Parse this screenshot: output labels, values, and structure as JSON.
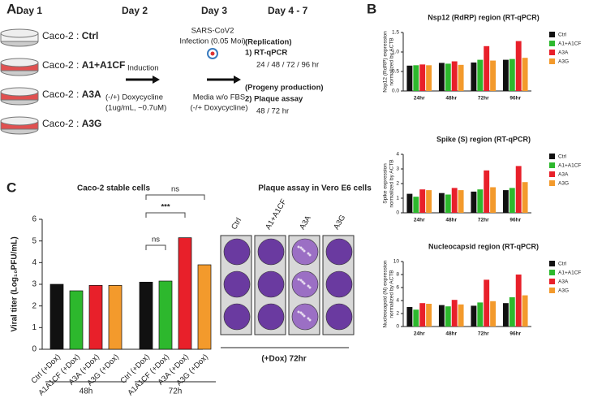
{
  "panel_a": {
    "letter": "A",
    "days": [
      "Day 1",
      "Day 2",
      "Day 3",
      "Day 4 - 7"
    ],
    "cells": [
      {
        "prefix": "Caco-2 : ",
        "name": "Ctrl"
      },
      {
        "prefix": "Caco-2 : ",
        "name": "A1+A1CF"
      },
      {
        "prefix": "Caco-2 : ",
        "name": "A3A"
      },
      {
        "prefix": "Caco-2 : ",
        "name": "A3G"
      }
    ],
    "day2": [
      "Induction",
      "(-/+) Doxycycline",
      "(1ug/mL, ~0.7uM)"
    ],
    "day3_top": [
      "SARS-CoV2",
      "Infection (0.05 Moi)"
    ],
    "day3_bottom": [
      "Media w/o FBS",
      "(-/+ Doxycycline)"
    ],
    "day47": [
      "(Replication)",
      "1) RT-qPCR",
      "24 / 48 / 72 / 96 hr",
      "(Progeny production)",
      "2) Plaque assay",
      "48 / 72 hr"
    ]
  },
  "panel_b_letter": "B",
  "panel_c_letter": "C",
  "chart_data": [
    {
      "type": "grouped-bar",
      "title": "Nsp12 (RdRP) region (RT-qPCR)",
      "ylabel": [
        "Nsp12 (RdRP) expression",
        "normalized by ACTB"
      ],
      "categories": [
        "24hr",
        "48hr",
        "72hr",
        "96hr"
      ],
      "series": [
        {
          "name": "Ctrl",
          "color": "#111111",
          "values": [
            0.65,
            0.72,
            0.73,
            0.8
          ]
        },
        {
          "name": "A1+A1CF",
          "color": "#2db82d",
          "values": [
            0.66,
            0.7,
            0.8,
            0.82
          ]
        },
        {
          "name": "A3A",
          "color": "#e8202a",
          "values": [
            0.68,
            0.76,
            1.15,
            1.28
          ]
        },
        {
          "name": "A3G",
          "color": "#f39a2c",
          "values": [
            0.66,
            0.67,
            0.78,
            0.85
          ]
        }
      ],
      "ylim": [
        0,
        1.5
      ],
      "yticks": [
        {
          "value": 0,
          "label": "0.0"
        },
        0.5,
        {
          "value": 1,
          "label": "1.0"
        },
        1.5
      ]
    },
    {
      "type": "grouped-bar",
      "title": "Spike (S) region (RT-qPCR)",
      "ylabel": [
        "Spike expression",
        "normalized by ACTB"
      ],
      "categories": [
        "24hr",
        "48hr",
        "72hr",
        "96hr"
      ],
      "series": [
        {
          "name": "Ctrl",
          "color": "#111111",
          "values": [
            1.3,
            1.35,
            1.45,
            1.55
          ]
        },
        {
          "name": "A1+A1CF",
          "color": "#2db82d",
          "values": [
            1.1,
            1.25,
            1.6,
            1.7
          ]
        },
        {
          "name": "A3A",
          "color": "#e8202a",
          "values": [
            1.6,
            1.7,
            2.9,
            3.2
          ]
        },
        {
          "name": "A3G",
          "color": "#f39a2c",
          "values": [
            1.55,
            1.55,
            1.75,
            2.1
          ]
        }
      ],
      "ylim": [
        0,
        4
      ],
      "yticks": [
        0,
        1,
        2,
        3,
        4
      ]
    },
    {
      "type": "grouped-bar",
      "title": "Nucleocapsid region (RT-qPCR)",
      "ylabel": [
        "Nucleocapsid (N) expression",
        "normalized by ACTB"
      ],
      "categories": [
        "24hr",
        "48hr",
        "72hr",
        "96hr"
      ],
      "series": [
        {
          "name": "Ctrl",
          "color": "#111111",
          "values": [
            3.0,
            3.3,
            3.2,
            3.6
          ]
        },
        {
          "name": "A1+A1CF",
          "color": "#2db82d",
          "values": [
            2.6,
            3.1,
            3.7,
            4.5
          ]
        },
        {
          "name": "A3A",
          "color": "#e8202a",
          "values": [
            3.6,
            4.1,
            7.2,
            8.0
          ]
        },
        {
          "name": "A3G",
          "color": "#f39a2c",
          "values": [
            3.5,
            3.4,
            3.9,
            4.8
          ]
        }
      ],
      "ylim": [
        0,
        10
      ],
      "yticks": [
        0,
        2,
        4,
        6,
        8,
        10
      ]
    },
    {
      "type": "bar",
      "title": "Caco-2 stable cells",
      "ylabel": "Viral titer (Log₁₀PFU/mL)",
      "categories": [
        "Ctrl (+Dox)",
        "A1A1CF (+Dox)",
        "A3A (+Dox)",
        "A3G (+Dox)",
        "Ctrl (+Dox)",
        "A1A1CF (+Dox)",
        "A3A (+Dox)",
        "A3G (+Dox)"
      ],
      "colors": [
        "#111111",
        "#2db82d",
        "#e8202a",
        "#f39a2c",
        "#111111",
        "#2db82d",
        "#e8202a",
        "#f39a2c"
      ],
      "values": [
        3.0,
        2.7,
        2.95,
        2.95,
        3.1,
        3.15,
        5.15,
        3.9
      ],
      "groups": [
        "48h",
        "72h"
      ],
      "annotations": [
        "ns",
        "***",
        "ns"
      ],
      "ylim": [
        0,
        6
      ],
      "yticks": [
        0,
        1,
        2,
        3,
        4,
        5,
        6
      ]
    }
  ],
  "plaque": {
    "title": "Plaque assay in Vero E6 cells",
    "columns": [
      "Ctrl",
      "A1+A1CF",
      "A3A",
      "A3G"
    ],
    "footer": "(+Dox) 72hr"
  }
}
